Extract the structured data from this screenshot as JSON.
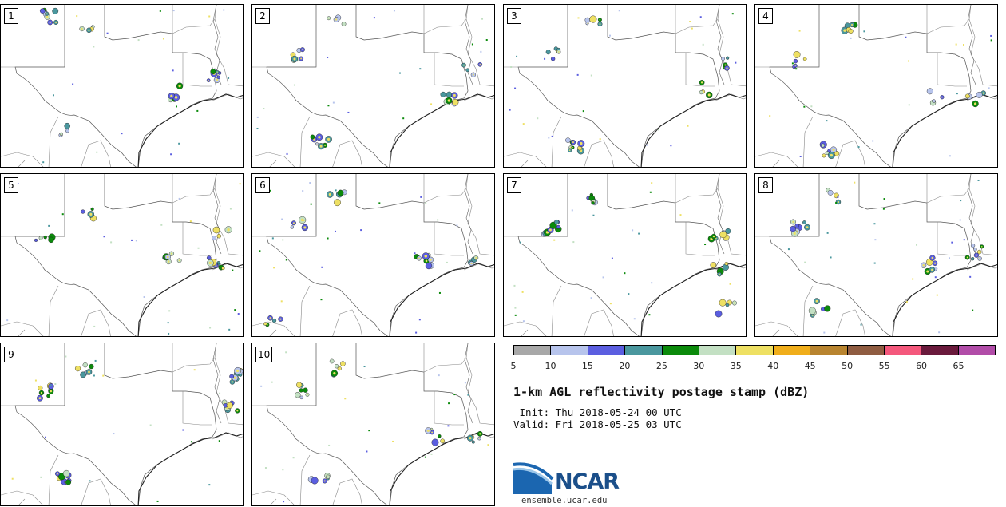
{
  "stamps": [
    "1",
    "2",
    "3",
    "4",
    "5",
    "6",
    "7",
    "8",
    "9",
    "10"
  ],
  "colorbar": {
    "colors": [
      "#a8a8a8",
      "#b7c4ec",
      "#5b5ee0",
      "#4a979e",
      "#0b8a0b",
      "#c3e0c3",
      "#eee063",
      "#f0ae1b",
      "#b8842f",
      "#8f5c41",
      "#f4587c",
      "#6a1a3c",
      "#b14ca8"
    ],
    "labels": [
      "5",
      "10",
      "15",
      "20",
      "25",
      "30",
      "35",
      "40",
      "45",
      "50",
      "55",
      "60",
      "65"
    ]
  },
  "title": "1-km AGL reflectivity postage stamp (dBZ)",
  "init": " Init: Thu 2018-05-24 00 UTC",
  "valid": "Valid: Fri 2018-05-25 03 UTC",
  "logo": {
    "text": "NCAR",
    "url": "ensemble.ucar.edu"
  }
}
